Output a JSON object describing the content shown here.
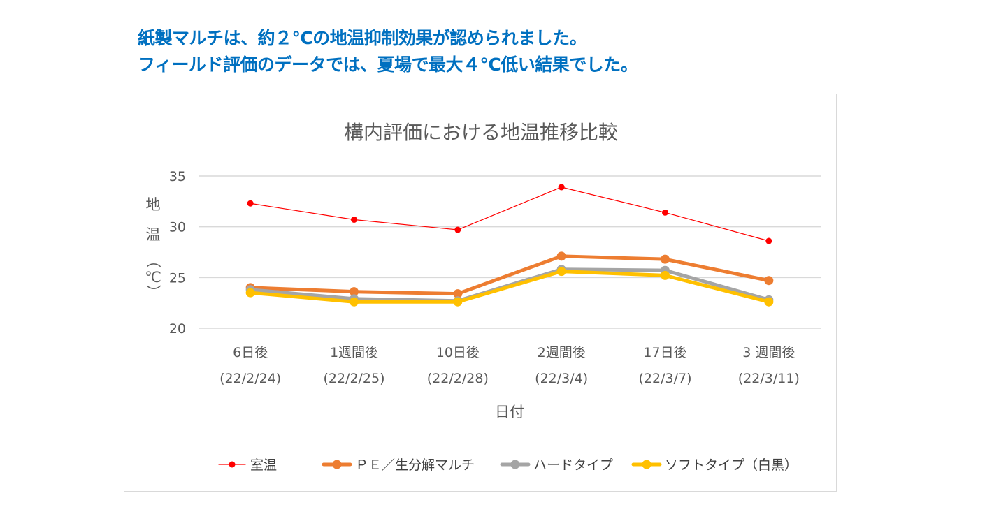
{
  "headline": {
    "line1": "紙製マルチは、約２℃の地温抑制効果が認められました。",
    "line2": "フィールド評価のデータでは、夏場で最大４℃低い結果でした。"
  },
  "chart_data": {
    "type": "line",
    "title": "構内評価における地温推移比較",
    "xlabel": "日付",
    "ylabel": "地温（℃）",
    "ylim": [
      20,
      35
    ],
    "yticks": [
      20,
      25,
      30,
      35
    ],
    "grid": true,
    "legend_position": "bottom",
    "categories": [
      {
        "line1": "6日後",
        "line2": "(22/2/24)"
      },
      {
        "line1": "1週間後",
        "line2": "(22/2/25)"
      },
      {
        "line1": "10日後",
        "line2": "(22/2/28)"
      },
      {
        "line1": "2週間後",
        "line2": "(22/3/4)"
      },
      {
        "line1": "17日後",
        "line2": "(22/3/7)"
      },
      {
        "line1": "3 週間後",
        "line2": "(22/3/11)"
      }
    ],
    "series": [
      {
        "name": "室温",
        "color": "#ff0000",
        "values": [
          32.3,
          30.7,
          29.7,
          33.9,
          31.4,
          28.6
        ]
      },
      {
        "name": "ＰＥ／生分解マルチ",
        "color": "#ed7d31",
        "values": [
          24.0,
          23.6,
          23.4,
          27.1,
          26.8,
          24.7
        ]
      },
      {
        "name": "ハードタイプ",
        "color": "#a5a5a5",
        "values": [
          23.8,
          22.9,
          22.7,
          25.8,
          25.7,
          22.8
        ]
      },
      {
        "name": "ソフトタイプ（白黒）",
        "color": "#ffc000",
        "values": [
          23.5,
          22.6,
          22.6,
          25.6,
          25.2,
          22.6
        ]
      }
    ]
  }
}
